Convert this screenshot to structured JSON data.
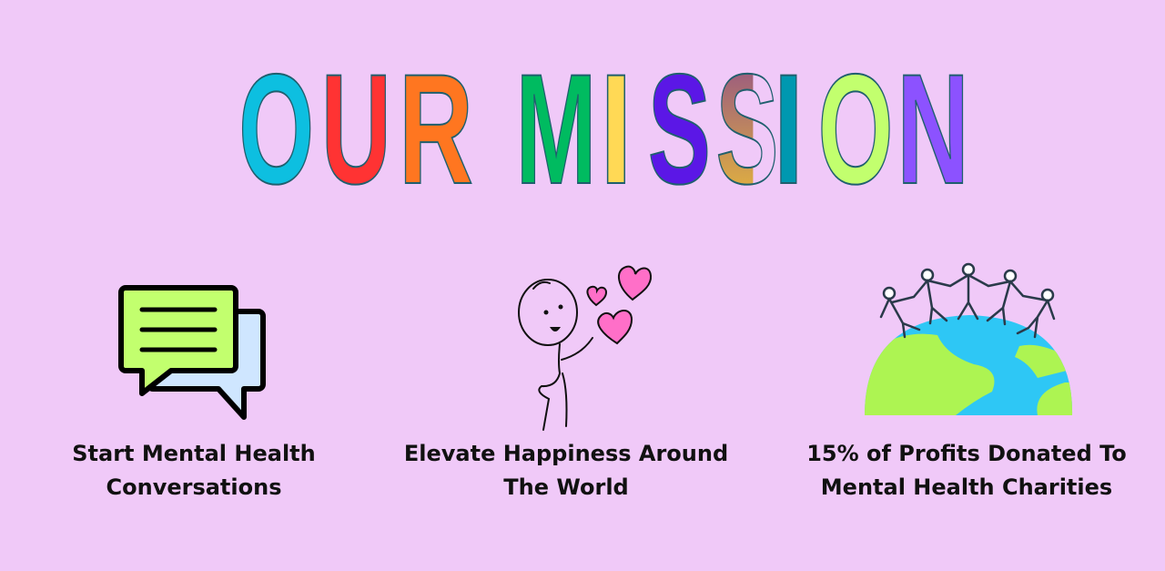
{
  "title": {
    "letters": [
      "O",
      "U",
      "R",
      "M",
      "I",
      "S",
      "S",
      "I",
      "O",
      "N"
    ],
    "colors": [
      "#0dbfe0",
      "#ff3333",
      "#ff7620",
      "#00bb60",
      "#ffd955",
      "#5b17e6",
      "#b07a70",
      "#0098b0",
      "#c2ff6e",
      "#8c52ff"
    ]
  },
  "features": [
    {
      "line1": "Start Mental Health",
      "line2": "Conversations",
      "icon": "chat-bubbles-icon"
    },
    {
      "line1": "Elevate Happiness Around",
      "line2": "The World",
      "icon": "stick-figure-hearts-icon"
    },
    {
      "line1": "15% of Profits Donated To",
      "line2": "Mental Health Charities",
      "icon": "globe-people-icon"
    }
  ],
  "colors": {
    "background": "#f0c9f8",
    "ocean": "#2ec7f5",
    "land": "#adf452",
    "heart": "#ff6fc8"
  }
}
